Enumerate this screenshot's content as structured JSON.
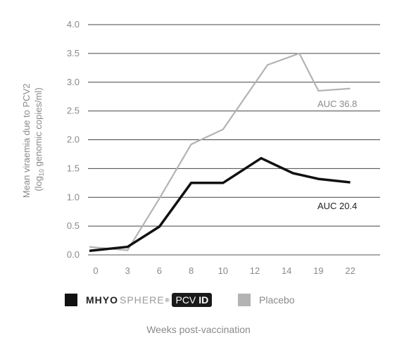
{
  "chart_data": {
    "type": "line",
    "x": [
      "0",
      "3",
      "6",
      "8",
      "10",
      "12",
      "14",
      "19",
      "22"
    ],
    "xlabel": "Weeks post-vaccination",
    "ylabel_line1": "Mean viraemia due to PCV2",
    "ylabel_line2_prefix": "(log",
    "ylabel_line2_sub": "10",
    "ylabel_line2_suffix": " genomic copies/ml)",
    "ylim": [
      0,
      4
    ],
    "yticks": [
      "0.0",
      "0.5",
      "1.0",
      "1.5",
      "2.0",
      "2.5",
      "3.0",
      "3.5",
      "4.0"
    ],
    "grid": "horizontal",
    "series": [
      {
        "name": "MHYOSPHERE PCV ID",
        "color": "#111111",
        "points": [
          [
            -0.2,
            0.07
          ],
          [
            1,
            0.14
          ],
          [
            2,
            0.49
          ],
          [
            3,
            1.25
          ],
          [
            4,
            1.25
          ],
          [
            5.2,
            1.68
          ],
          [
            6.2,
            1.42
          ],
          [
            7,
            1.32
          ],
          [
            8,
            1.26
          ]
        ]
      },
      {
        "name": "Placebo",
        "color": "#b3b3b3",
        "points": [
          [
            -0.2,
            0.14
          ],
          [
            1,
            0.08
          ],
          [
            2,
            0.98
          ],
          [
            3,
            1.92
          ],
          [
            4,
            2.18
          ],
          [
            5.4,
            3.3
          ],
          [
            6.4,
            3.5
          ],
          [
            7,
            2.85
          ],
          [
            8,
            2.89
          ]
        ]
      }
    ],
    "annotations": [
      {
        "text": "AUC 36.8",
        "color": "#8a8a8a"
      },
      {
        "text": "AUC 20.4",
        "color": "#222222"
      }
    ]
  },
  "legend": {
    "brand_bold": "MHYO",
    "brand_light": "SPHERE",
    "brand_reg": "®",
    "brand_badge_pcv": "PCV",
    "brand_badge_id": "ID",
    "placebo_label": "Placebo",
    "swatch_colors": [
      "#111111",
      "#b3b3b3"
    ]
  }
}
